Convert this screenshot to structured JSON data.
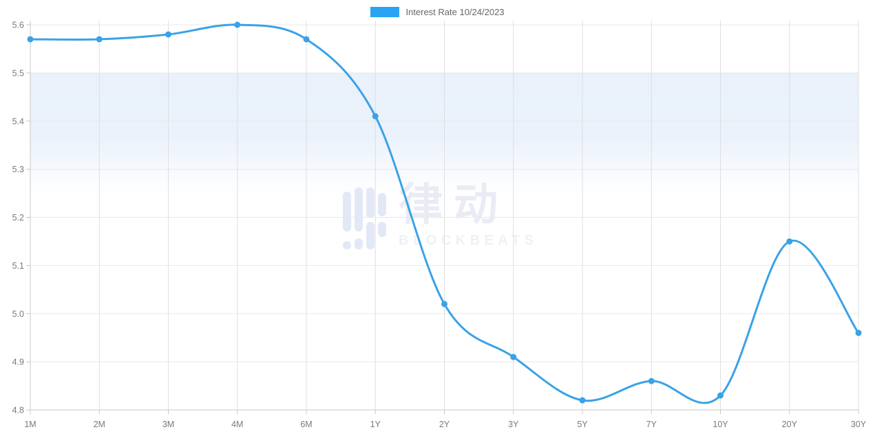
{
  "legend": {
    "label": "Interest Rate 10/24/2023",
    "swatch_color": "#2aa4f2"
  },
  "watermark": {
    "cjk": "律动",
    "latin": "BLOCKBEATS",
    "bar_color": "#e3e8f6"
  },
  "chart_data": {
    "type": "line",
    "title": "",
    "xlabel": "",
    "ylabel": "",
    "categories": [
      "1M",
      "2M",
      "3M",
      "4M",
      "6M",
      "1Y",
      "2Y",
      "3Y",
      "5Y",
      "7Y",
      "10Y",
      "20Y",
      "30Y"
    ],
    "series": [
      {
        "name": "Interest Rate 10/24/2023",
        "values": [
          5.57,
          5.57,
          5.58,
          5.6,
          5.57,
          5.41,
          5.02,
          4.91,
          4.82,
          4.86,
          4.83,
          5.15,
          4.96
        ]
      }
    ],
    "ylim": [
      4.8,
      5.6
    ],
    "yticks": [
      4.8,
      4.9,
      5.0,
      5.1,
      5.2,
      5.3,
      5.4,
      5.5,
      5.6
    ],
    "band": {
      "from": 5.25,
      "to": 5.5,
      "color": "#e8f0fb"
    },
    "grid": true,
    "legend_position": "top-center",
    "colors": {
      "line": "#3aa2e6",
      "point": "#3aa2e6",
      "h_grid": "#e8e8e8",
      "v_grid": "#dcdfe2",
      "axis": "#c8c8c8",
      "tick_label": "#7a7a7a"
    },
    "line_width": 3,
    "point_radius": 4.5
  }
}
